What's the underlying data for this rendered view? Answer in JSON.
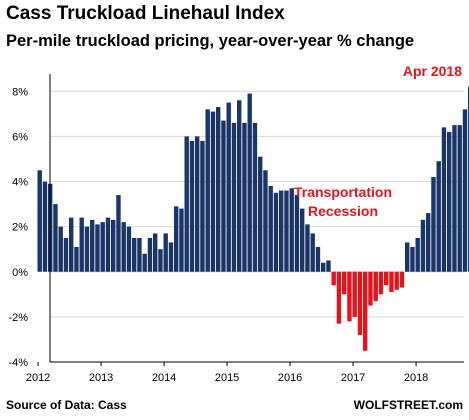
{
  "header": {
    "title": "Cass Truckload Linehaul Index",
    "subtitle": "Per-mile truckload pricing, year-over-year % change"
  },
  "footer": {
    "source": "Source of Data: Cass",
    "brand": "WOLFSTREET.com"
  },
  "colors": {
    "positive": "#1a3668",
    "negative": "#e2141c",
    "annotation": "#e2141c",
    "grid": "#d9d9d9"
  },
  "chart_data": {
    "type": "bar",
    "title": "Cass Truckload Linehaul Index",
    "subtitle": "Per-mile truckload pricing, year-over-year % change",
    "xlabel": "",
    "ylabel": "",
    "ylim": [
      -4,
      8.5
    ],
    "yticks": [
      -4,
      -2,
      0,
      2,
      4,
      6,
      8
    ],
    "ytick_labels": [
      "-4%",
      "-2%",
      "0%",
      "2%",
      "4%",
      "6%",
      "8%"
    ],
    "xtick_labels": [
      "2012",
      "2013",
      "2014",
      "2015",
      "2016",
      "2017",
      "2018"
    ],
    "grid": "horizontal",
    "start": "2012-01",
    "end": "2018-04",
    "values": [
      4.5,
      4.0,
      3.9,
      3.0,
      2.0,
      1.5,
      2.4,
      1.1,
      2.4,
      2.0,
      2.3,
      2.1,
      2.2,
      2.4,
      2.3,
      3.4,
      2.2,
      2.0,
      1.5,
      1.5,
      0.8,
      1.5,
      1.7,
      1.0,
      1.7,
      1.3,
      2.9,
      2.8,
      6.0,
      5.8,
      6.0,
      5.8,
      7.2,
      7.1,
      7.3,
      6.7,
      7.5,
      6.6,
      7.6,
      6.6,
      7.9,
      6.6,
      5.1,
      4.5,
      3.8,
      3.5,
      3.6,
      3.6,
      3.7,
      3.4,
      2.8,
      2.1,
      1.7,
      1.1,
      0.4,
      0.5,
      -0.6,
      -2.3,
      -1.0,
      -2.2,
      -2.0,
      -2.8,
      -3.5,
      -1.5,
      -1.3,
      -1.0,
      -0.6,
      -0.9,
      -0.8,
      -0.7,
      1.3,
      1.1,
      1.5,
      2.3,
      2.6,
      4.2,
      4.9,
      6.4,
      6.2,
      6.5,
      6.5,
      7.2,
      8.2
    ],
    "annotations": [
      {
        "text": "Apr 2018",
        "target": "2018-04"
      },
      {
        "text": "Transportation",
        "target": "2016"
      },
      {
        "text": "Recession",
        "target": "2016"
      }
    ]
  }
}
